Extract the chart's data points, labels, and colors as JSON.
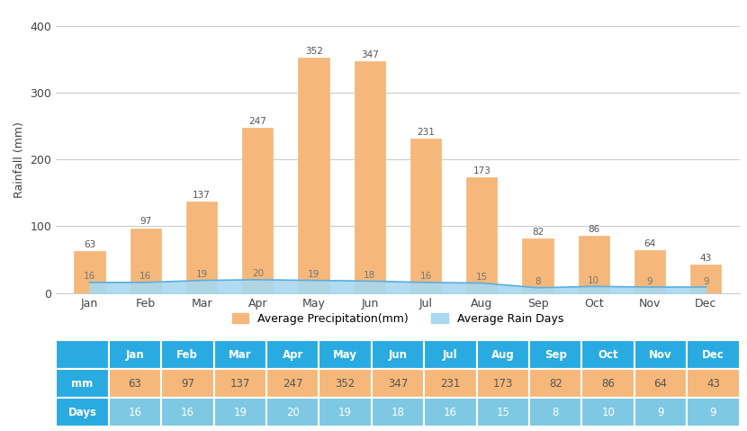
{
  "months": [
    "Jan",
    "Feb",
    "Mar",
    "Apr",
    "May",
    "Jun",
    "Jul",
    "Aug",
    "Sep",
    "Oct",
    "Nov",
    "Dec"
  ],
  "precipitation": [
    63,
    97,
    137,
    247,
    352,
    347,
    231,
    173,
    82,
    86,
    64,
    43
  ],
  "rain_days": [
    16,
    16,
    19,
    20,
    19,
    18,
    16,
    15,
    8,
    10,
    9,
    9
  ],
  "bar_color": "#F5B87A",
  "bar_edge_color": "#F5B87A",
  "area_color": "#A8D8F0",
  "area_line_color": "#5BAEE0",
  "ylabel": "Rainfall (mm)",
  "ylim": [
    0,
    400
  ],
  "yticks": [
    0,
    100,
    200,
    300,
    400
  ],
  "legend_bar_label": "Average Precipitation(mm)",
  "legend_area_label": "Average Rain Days",
  "table_header_color": "#29ABE2",
  "table_mm_color": "#F5B87A",
  "table_days_color": "#7EC8E3",
  "table_text_color_white": "#FFFFFF",
  "table_text_color_dark": "#555555",
  "table_border_color": "#FFFFFF",
  "grid_color": "#CCCCCC",
  "background_color": "#FFFFFF",
  "scale_factor": 1
}
